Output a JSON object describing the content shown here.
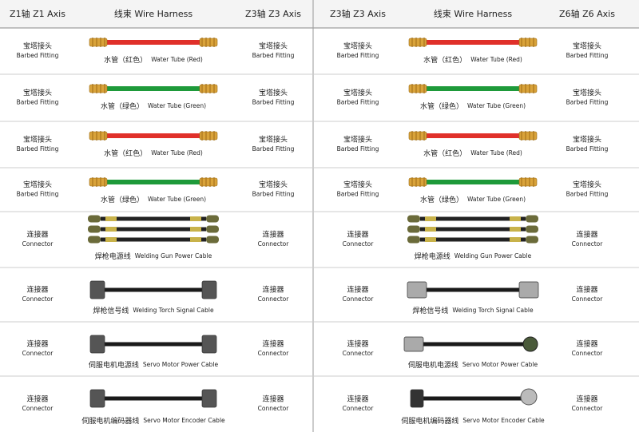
{
  "tables": [
    {
      "header": [
        "Z1轴 Z1 Axis",
        "线束 Wire Harness",
        "Z3轴 Z3 Axis"
      ],
      "rows": [
        {
          "left": [
            "宝塔接头",
            "Barbed Fitting"
          ],
          "item": [
            "水管（红色）",
            "Water Tube (Red)"
          ],
          "right": [
            "宝塔接头",
            "Barbed Fitting"
          ]
        },
        {
          "left": [
            "宝塔接头",
            "Barbed Fitting"
          ],
          "item": [
            "水管（绿色）",
            "Water Tube (Green)"
          ],
          "right": [
            "宝塔接头",
            "Barbed Fitting"
          ]
        },
        {
          "left": [
            "宝塔接头",
            "Barbed Fitting"
          ],
          "item": [
            "水管（红色）",
            "Water Tube (Red)"
          ],
          "right": [
            "宝塔接头",
            "Barbed Fitting"
          ]
        },
        {
          "left": [
            "宝塔接头",
            "Barbed Fitting"
          ],
          "item": [
            "水管（绿色）",
            "Water Tube (Green)"
          ],
          "right": [
            "宝塔接头",
            "Barbed Fitting"
          ]
        },
        {
          "left": [
            "连接器",
            "Connector"
          ],
          "item": [
            "焊枪电源线",
            "Welding Gun Power Cable"
          ],
          "right": [
            "连接器",
            "Connector"
          ]
        },
        {
          "left": [
            "连接器",
            "Connector"
          ],
          "item": [
            "焊枪信号线",
            "Welding Torch Signal Cable"
          ],
          "right": [
            "连接器",
            "Connector"
          ]
        },
        {
          "left": [
            "连接器",
            "Connector"
          ],
          "item": [
            "伺服电机电源线",
            "Servo Motor Power Cable"
          ],
          "right": [
            "连接器",
            "Connector"
          ]
        },
        {
          "left": [
            "连接器",
            "Connector"
          ],
          "item": [
            "伺服电机编码器线",
            "Servo Motor Encoder Cable"
          ],
          "right": [
            "连接器",
            "Connector"
          ]
        }
      ]
    },
    {
      "header": [
        "Z3轴 Z3 Axis",
        "线束 Wire Harness",
        "Z6轴 Z6 Axis"
      ],
      "rows": [
        {
          "left": [
            "宝塔接头",
            "Barbed Fitting"
          ],
          "item": [
            "水管（红色）",
            "Water Tube (Red)"
          ],
          "right": [
            "宝塔接头",
            "Barbed Fitting"
          ]
        },
        {
          "left": [
            "宝塔接头",
            "Barbed Fitting"
          ],
          "item": [
            "水管（绿色）",
            "Water Tube (Green)"
          ],
          "right": [
            "宝塔接头",
            "Barbed Fitting"
          ]
        },
        {
          "left": [
            "宝塔接头",
            "Barbed Fitting"
          ],
          "item": [
            "水管（红色）",
            "Water Tube (Red)"
          ],
          "right": [
            "宝塔接头",
            "Barbed Fitting"
          ]
        },
        {
          "left": [
            "宝塔接头",
            "Barbed Fitting"
          ],
          "item": [
            "水管（绿色）",
            "Water Tube (Green)"
          ],
          "right": [
            "宝塔接头",
            "Barbed Fitting"
          ]
        },
        {
          "left": [
            "连接器",
            "Connector"
          ],
          "item": [
            "焊枪电源线",
            "Welding Gun Power Cable"
          ],
          "right": [
            "连接器",
            "Connector"
          ]
        },
        {
          "left": [
            "连接器",
            "Connector"
          ],
          "item": [
            "焊枪信号线",
            "Welding Torch Signal Cable"
          ],
          "right": [
            "连接器",
            "Connector"
          ]
        },
        {
          "left": [
            "连接器",
            "Connector"
          ],
          "item": [
            "伺服电机电源线",
            "Servo Motor Power Cable"
          ],
          "right": [
            "连接器",
            "Connector"
          ]
        },
        {
          "left": [
            "连接器",
            "Connector"
          ],
          "item": [
            "伺服电机编码器线",
            "Servo Motor Encoder Cable"
          ],
          "right": [
            "连接器",
            "Connector"
          ]
        }
      ]
    }
  ]
}
